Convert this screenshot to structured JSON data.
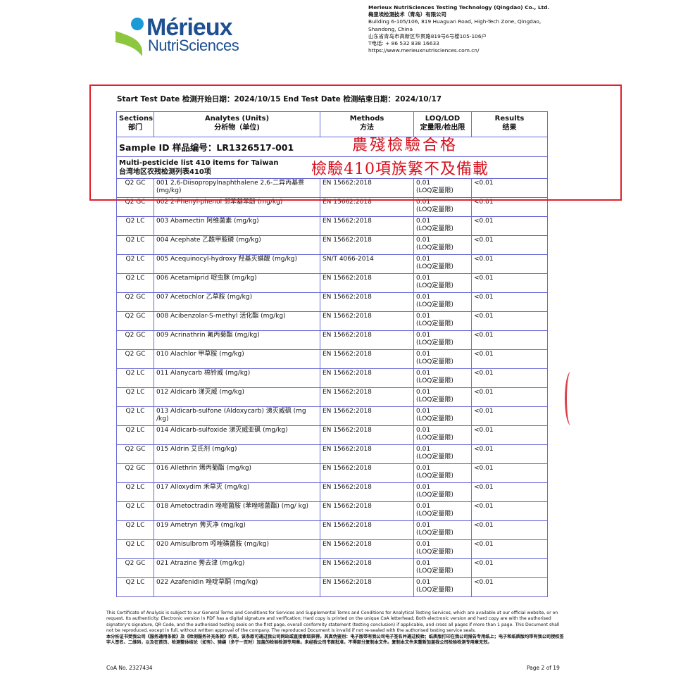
{
  "logo": {
    "line1": "Mérieux",
    "line2": "NutriSciences",
    "colors": {
      "blue": "#1d4f91",
      "dot": "#1a9ad6",
      "leaf": "#8dc63f"
    }
  },
  "company": {
    "name_en": "Merieux NutriSciences Testing Technology (Qingdao) Co., Ltd.",
    "name_cn": "梅里埃检测技术（青岛）有限公司",
    "address_en_1": "Building 6-105/106, 819 Huaguan Road, High-Tech Zone, Qingdao,",
    "address_en_2": "Shandong, China",
    "address_cn": "山东省青岛市高新区华贯路819号6号楼105-106户",
    "phone": "T电话: + 86 532 838 16633",
    "website": "https://www.merieuxnutrisciences.com.cn/"
  },
  "test_dates": "Start Test Date 检测开始日期：2024/10/15   End Test Date 检测结束日期：2024/10/17",
  "table": {
    "headers": [
      {
        "en": "Sections",
        "cn": "部门"
      },
      {
        "en": "Analytes (Units)",
        "cn": "分析物（单位)"
      },
      {
        "en": "Methods",
        "cn": "方法"
      },
      {
        "en": "LOQ/LOD",
        "cn": "定量限/检出限"
      },
      {
        "en": "Results",
        "cn": "结果"
      }
    ],
    "sample_id": "Sample ID 样品编号：LR1326517-001",
    "list_title_en": "Multi-pesticide list 410 items for Taiwan",
    "list_title_cn": "台湾地区农残检测列表410项",
    "rows": [
      [
        "Q2 GC",
        "001 2,6-Diisopropylnaphthalene 2,6-二异丙基萘 (mg/kg)",
        "EN 15662:2018",
        "0.01",
        "(LOQ定量限)",
        "<0.01"
      ],
      [
        "Q2 GC",
        "002 2-Phenyl-phenol 邻苯基苯酚 (mg/kg)",
        "EN 15662:2018",
        "0.01",
        "(LOQ定量限)",
        "<0.01"
      ],
      [
        "Q2 LC",
        "003 Abamectin 阿维菌素 (mg/kg)",
        "EN 15662:2018",
        "0.01",
        "(LOQ定量限)",
        "<0.01"
      ],
      [
        "Q2 LC",
        "004 Acephate 乙酰甲胺磷 (mg/kg)",
        "EN 15662:2018",
        "0.01",
        "(LOQ定量限)",
        "<0.01"
      ],
      [
        "Q2 LC",
        "005 Acequinocyl-hydroxy 羟基灭螨醌 (mg/kg)",
        "SN/T 4066-2014",
        "0.01",
        "(LOQ定量限)",
        "<0.01"
      ],
      [
        "Q2 LC",
        "006 Acetamiprid 啶虫脒 (mg/kg)",
        "EN 15662:2018",
        "0.01",
        "(LOQ定量限)",
        "<0.01"
      ],
      [
        "Q2 GC",
        "007 Acetochlor 乙草胺 (mg/kg)",
        "EN 15662:2018",
        "0.01",
        "(LOQ定量限)",
        "<0.01"
      ],
      [
        "Q2 GC",
        "008 Acibenzolar-S-methyl 活化酯 (mg/kg)",
        "EN 15662:2018",
        "0.01",
        "(LOQ定量限)",
        "<0.01"
      ],
      [
        "Q2 GC",
        "009 Acrinathrin 氟丙菊酯 (mg/kg)",
        "EN 15662:2018",
        "0.01",
        "(LOQ定量限)",
        "<0.01"
      ],
      [
        "Q2 GC",
        "010 Alachlor 甲草胺 (mg/kg)",
        "EN 15662:2018",
        "0.01",
        "(LOQ定量限)",
        "<0.01"
      ],
      [
        "Q2 LC",
        "011 Alanycarb 棉铃威 (mg/kg)",
        "EN 15662:2018",
        "0.01",
        "(LOQ定量限)",
        "<0.01"
      ],
      [
        "Q2 LC",
        "012 Aldicarb 涕灭威 (mg/kg)",
        "EN 15662:2018",
        "0.01",
        "(LOQ定量限)",
        "<0.01"
      ],
      [
        "Q2 LC",
        "013 Aldicarb-sulfone (Aldoxycarb) 涕灭威砜 (mg /kg)",
        "EN 15662:2018",
        "0.01",
        "(LOQ定量限)",
        "<0.01"
      ],
      [
        "Q2 LC",
        "014 Aldicarb-sulfoxide 涕灭威亚砜 (mg/kg)",
        "EN 15662:2018",
        "0.01",
        "(LOQ定量限)",
        "<0.01"
      ],
      [
        "Q2 GC",
        "015 Aldrin 艾氏剂 (mg/kg)",
        "EN 15662:2018",
        "0.01",
        "(LOQ定量限)",
        "<0.01"
      ],
      [
        "Q2 GC",
        "016 Allethrin 烯丙菊酯 (mg/kg)",
        "EN 15662:2018",
        "0.01",
        "(LOQ定量限)",
        "<0.01"
      ],
      [
        "Q2 LC",
        "017 Alloxydim 禾草灭 (mg/kg)",
        "EN 15662:2018",
        "0.01",
        "(LOQ定量限)",
        "<0.01"
      ],
      [
        "Q2 LC",
        "018 Ametoctradin 唑嘧菌胺 (苯唑嘧菌酯) (mg/ kg)",
        "EN 15662:2018",
        "0.01",
        "(LOQ定量限)",
        "<0.01"
      ],
      [
        "Q2 LC",
        "019 Ametryn 莠灭净 (mg/kg)",
        "EN 15662:2018",
        "0.01",
        "(LOQ定量限)",
        "<0.01"
      ],
      [
        "Q2 LC",
        "020 Amisulbrom 吲唑磺菌胺 (mg/kg)",
        "EN 15662:2018",
        "0.01",
        "(LOQ定量限)",
        "<0.01"
      ],
      [
        "Q2 GC",
        "021 Atrazine 莠去津 (mg/kg)",
        "EN 15662:2018",
        "0.01",
        "(LOQ定量限)",
        "<0.01"
      ],
      [
        "Q2 LC",
        "022 Azafenidin 唑啶草酮 (mg/kg)",
        "EN 15662:2018",
        "0.01",
        "(LOQ定量限)",
        "<0.01"
      ]
    ]
  },
  "stamps": {
    "line1": "農殘檢驗合格",
    "line2": "檢驗410項族繁不及備載",
    "color": "#d8121f"
  },
  "footer": {
    "en": "This Certificate of Analysis is subject to our General Terms and Conditions for Services and Supplemental Terms and Conditions for Analytical Testing Services, which are available at our official website, or on request. Its authenticity: Electronic version in PDF has a digital signature and verification; Hard copy is printed on the unique CoA letterhead; Both electronic version and hard copy are with the authorised signatory's signature, QR Code, and the authorised testing seals on the first page, overall conformity statement (testing conclusion) if applicable, and cross all pages if more than 1 page. This Document shall not be reproduced, except in full, without written approval of the company. The reproduced Document is invalid if not re-sealed with the authorised testing service seals.",
    "cn": "本分析证书受我公司《服务通用条款》及《检测服务补充条款》约束，该条款可通过我公司网站或直接索取获得。其真伪鉴别：电子版带有我公司电子签名并通过校验；纸质版打印在我公司报告专用纸上；电子和纸质版均带有我公司授权签字人签名、二维码，以及在首页、检测整体结论（如有）、骑缝（多于一页时）加盖的检验检测专用章。未经我公司书面批准，不得部分复制本文件。复制本文件未重新加盖我公司检验检测专用章无效。",
    "coa_no": "CoA No. 2327434",
    "page": "Page 2 of 19"
  }
}
